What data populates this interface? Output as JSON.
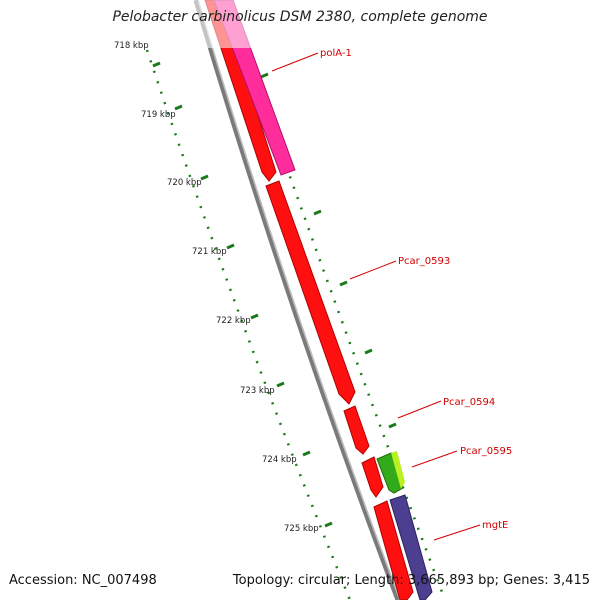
{
  "title": "Pelobacter carbinolicus DSM 2380, complete genome",
  "footer": {
    "accession": "Accession: NC_007498",
    "topology": "Topology: circular; Length: 3,665,893 bp; Genes: 3,415"
  },
  "ticks": [
    "718 kbp",
    "719 kbp",
    "720 kbp",
    "721 kbp",
    "722 kbp",
    "723 kbp",
    "724 kbp",
    "725 kbp"
  ],
  "gene_labels": [
    {
      "name": "polA-1",
      "color": "#d40000"
    },
    {
      "name": "Pcar_0593",
      "color": "#d40000"
    },
    {
      "name": "Pcar_0594",
      "color": "#d40000"
    },
    {
      "name": "Pcar_0595",
      "color": "#d40000"
    },
    {
      "name": "mgtE",
      "color": "#d40000"
    }
  ],
  "colors": {
    "backbone": "#7a7a7a",
    "cds": "#ff0000",
    "pink": "#ff2d9c",
    "green": "#33aa1a",
    "purple": "#4c3f8f",
    "tick": "#1a7a1a",
    "label": "#d40000"
  }
}
